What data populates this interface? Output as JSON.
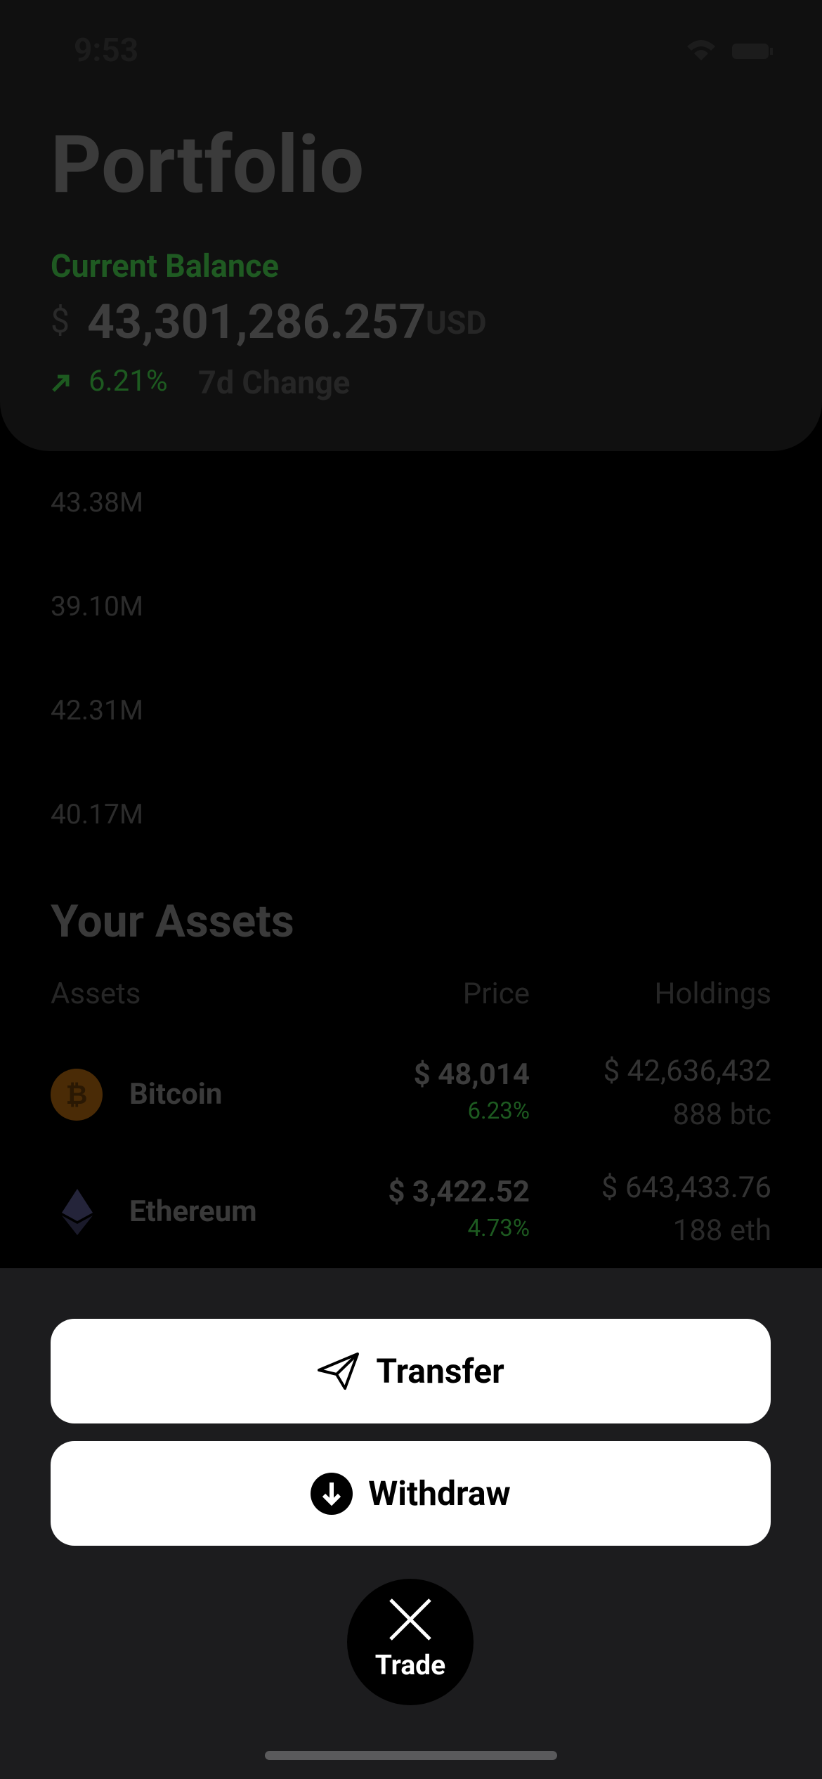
{
  "status_bar": {
    "time": "9:53"
  },
  "header": {
    "title": "Portfolio",
    "balance_label": "Current Balance",
    "currency_symbol": "$",
    "balance": "43,301,286.257",
    "balance_unit": "USD",
    "change": "6.21%",
    "change_label": "7d Change"
  },
  "chart": {
    "labels": [
      "43.38M",
      "39.10M",
      "42.31M",
      "40.17M"
    ]
  },
  "assets": {
    "title": "Your Assets",
    "columns": [
      "Assets",
      "Price",
      "Holdings"
    ],
    "rows": [
      {
        "name": "Bitcoin",
        "price": "$ 48,014",
        "change": "6.23%",
        "holdings_value": "$ 42,636,432",
        "holdings_amount": "888 btc"
      },
      {
        "name": "Ethereum",
        "price": "$ 3,422.52",
        "change": "4.73%",
        "holdings_value": "$ 643,433.76",
        "holdings_amount": "188 eth"
      }
    ]
  },
  "sheet": {
    "buttons": [
      "Transfer",
      "Withdraw"
    ],
    "close_label": "Trade"
  }
}
